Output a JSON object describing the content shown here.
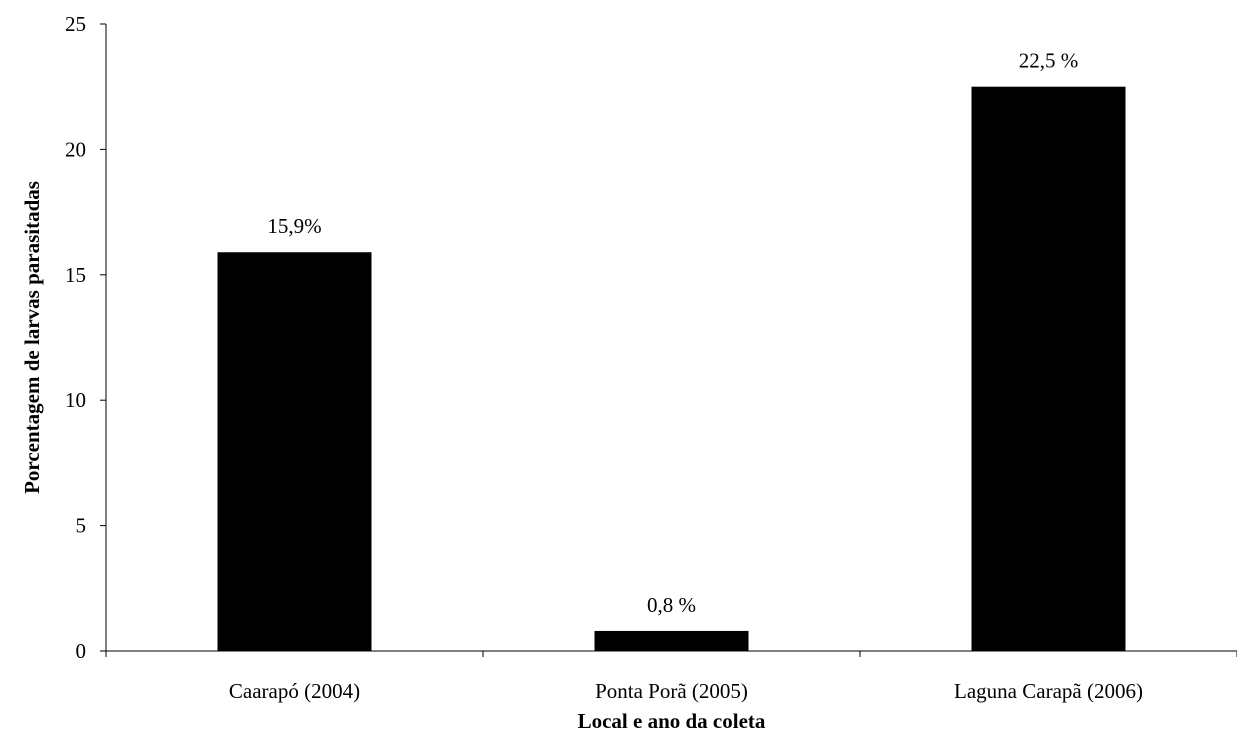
{
  "chart_data": {
    "type": "bar",
    "categories": [
      "Caarapó (2004)",
      "Ponta Porã (2005)",
      "Laguna Carapã (2006)"
    ],
    "values": [
      15.9,
      0.8,
      22.5
    ],
    "data_labels": [
      "15,9%",
      "0,8 %",
      "22,5 %"
    ],
    "xlabel": "Local e ano da coleta",
    "ylabel": "Porcentagem de larvas parasitadas",
    "ylim": [
      0,
      25
    ],
    "yticks": [
      "0",
      "5",
      "10",
      "15",
      "20",
      "25"
    ],
    "ytick_values": [
      0,
      5,
      10,
      15,
      20,
      25
    ],
    "bar_color": "#000000",
    "grid": false,
    "legend": false
  }
}
